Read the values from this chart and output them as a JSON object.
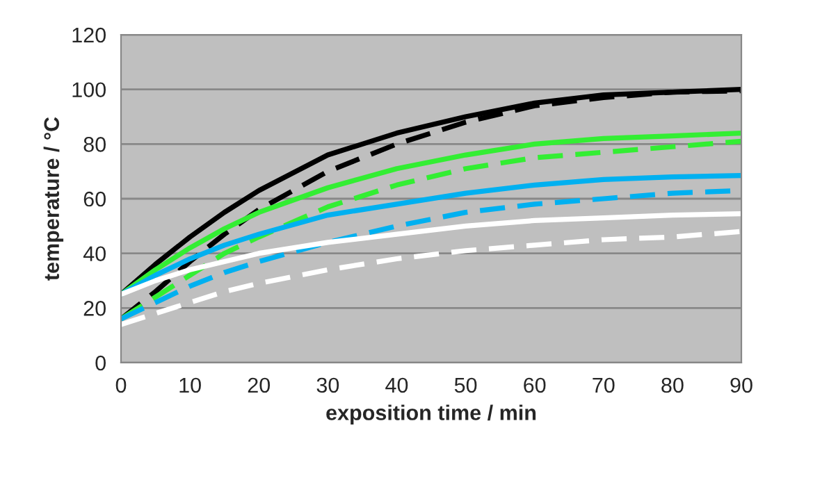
{
  "chart_data": {
    "type": "line",
    "xlabel": "exposition time / min",
    "ylabel": "temperature / °C",
    "xlim": [
      0,
      90
    ],
    "ylim": [
      0,
      120
    ],
    "xticks": [
      0,
      10,
      20,
      30,
      40,
      50,
      60,
      70,
      80,
      90
    ],
    "yticks": [
      0,
      20,
      40,
      60,
      80,
      100,
      120
    ],
    "grid": "y",
    "x": [
      0,
      5,
      10,
      15,
      20,
      30,
      40,
      50,
      60,
      70,
      80,
      90
    ],
    "series": [
      {
        "color": "#000000",
        "line_style": "solid",
        "values": [
          25,
          36,
          46,
          55,
          63,
          76,
          84,
          90,
          95,
          98,
          99,
          100
        ]
      },
      {
        "color": "#000000",
        "line_style": "dashed",
        "values": [
          16,
          26,
          37,
          47,
          56,
          70,
          80,
          88,
          94,
          97,
          99,
          99.5
        ]
      },
      {
        "color": "#33ee33",
        "line_style": "solid",
        "values": [
          25,
          34,
          42,
          49,
          55,
          64,
          71,
          76,
          80,
          82,
          83,
          84
        ]
      },
      {
        "color": "#33ee33",
        "line_style": "dashed",
        "values": [
          16,
          24,
          32,
          40,
          46,
          57,
          65,
          71,
          75,
          77,
          79,
          81
        ]
      },
      {
        "color": "#00b0f0",
        "line_style": "solid",
        "values": [
          25,
          32,
          38,
          43,
          47,
          54,
          58,
          62,
          65,
          67,
          68,
          68.5
        ]
      },
      {
        "color": "#00b0f0",
        "line_style": "dashed",
        "values": [
          16,
          22,
          28,
          33,
          37,
          44,
          50,
          55,
          58,
          60,
          62,
          63
        ]
      },
      {
        "color": "#ffffff",
        "line_style": "solid",
        "values": [
          25,
          30,
          34,
          37,
          40,
          44,
          47,
          50,
          52,
          53,
          54,
          54.5
        ]
      },
      {
        "color": "#ffffff",
        "line_style": "dashed",
        "values": [
          14,
          18,
          22,
          26,
          29,
          34,
          38,
          41,
          43,
          45,
          46,
          48
        ]
      }
    ]
  }
}
